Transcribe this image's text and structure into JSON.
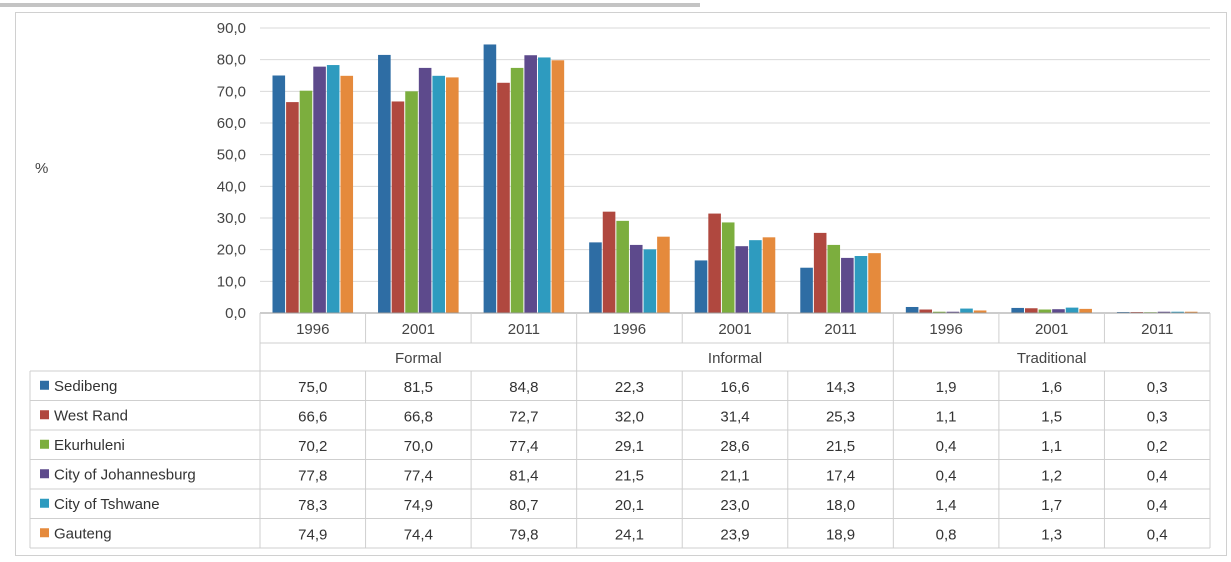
{
  "chart_data": {
    "type": "bar",
    "ylabel": "%",
    "ylim": [
      0,
      90
    ],
    "yticks": [
      "0,0",
      "10,0",
      "20,0",
      "30,0",
      "40,0",
      "50,0",
      "60,0",
      "70,0",
      "80,0",
      "90,0"
    ],
    "grid": true,
    "legend_placement": "table-left",
    "groups": [
      "Formal",
      "Informal",
      "Traditional"
    ],
    "categories": [
      "1996",
      "2001",
      "2011",
      "1996",
      "2001",
      "2011",
      "1996",
      "2001",
      "2011"
    ],
    "series": [
      {
        "name": "Sedibeng",
        "color": "#2e6da4",
        "values": [
          75.0,
          81.5,
          84.8,
          22.3,
          16.6,
          14.3,
          1.9,
          1.6,
          0.3
        ],
        "labels": [
          "75,0",
          "81,5",
          "84,8",
          "22,3",
          "16,6",
          "14,3",
          "1,9",
          "1,6",
          "0,3"
        ]
      },
      {
        "name": "West Rand",
        "color": "#b0483f",
        "values": [
          66.6,
          66.8,
          72.7,
          32.0,
          31.4,
          25.3,
          1.1,
          1.5,
          0.3
        ],
        "labels": [
          "66,6",
          "66,8",
          "72,7",
          "32,0",
          "31,4",
          "25,3",
          "1,1",
          "1,5",
          "0,3"
        ]
      },
      {
        "name": "Ekurhuleni",
        "color": "#7cae3e",
        "values": [
          70.2,
          70.0,
          77.4,
          29.1,
          28.6,
          21.5,
          0.4,
          1.1,
          0.2
        ],
        "labels": [
          "70,2",
          "70,0",
          "77,4",
          "29,1",
          "28,6",
          "21,5",
          "0,4",
          "1,1",
          "0,2"
        ]
      },
      {
        "name": "City of Johannesburg",
        "color": "#5d4a8c",
        "values": [
          77.8,
          77.4,
          81.4,
          21.5,
          21.1,
          17.4,
          0.4,
          1.2,
          0.4
        ],
        "labels": [
          "77,8",
          "77,4",
          "81,4",
          "21,5",
          "21,1",
          "17,4",
          "0,4",
          "1,2",
          "0,4"
        ]
      },
      {
        "name": "City of Tshwane",
        "color": "#2e9bbf",
        "values": [
          78.3,
          74.9,
          80.7,
          20.1,
          23.0,
          18.0,
          1.4,
          1.7,
          0.4
        ],
        "labels": [
          "78,3",
          "74,9",
          "80,7",
          "20,1",
          "23,0",
          "18,0",
          "1,4",
          "1,7",
          "0,4"
        ]
      },
      {
        "name": "Gauteng",
        "color": "#e58a3c",
        "values": [
          74.9,
          74.4,
          79.8,
          24.1,
          23.9,
          18.9,
          0.8,
          1.3,
          0.4
        ],
        "labels": [
          "74,9",
          "74,4",
          "79,8",
          "24,1",
          "23,9",
          "18,9",
          "0,8",
          "1,3",
          "0,4"
        ]
      }
    ]
  }
}
